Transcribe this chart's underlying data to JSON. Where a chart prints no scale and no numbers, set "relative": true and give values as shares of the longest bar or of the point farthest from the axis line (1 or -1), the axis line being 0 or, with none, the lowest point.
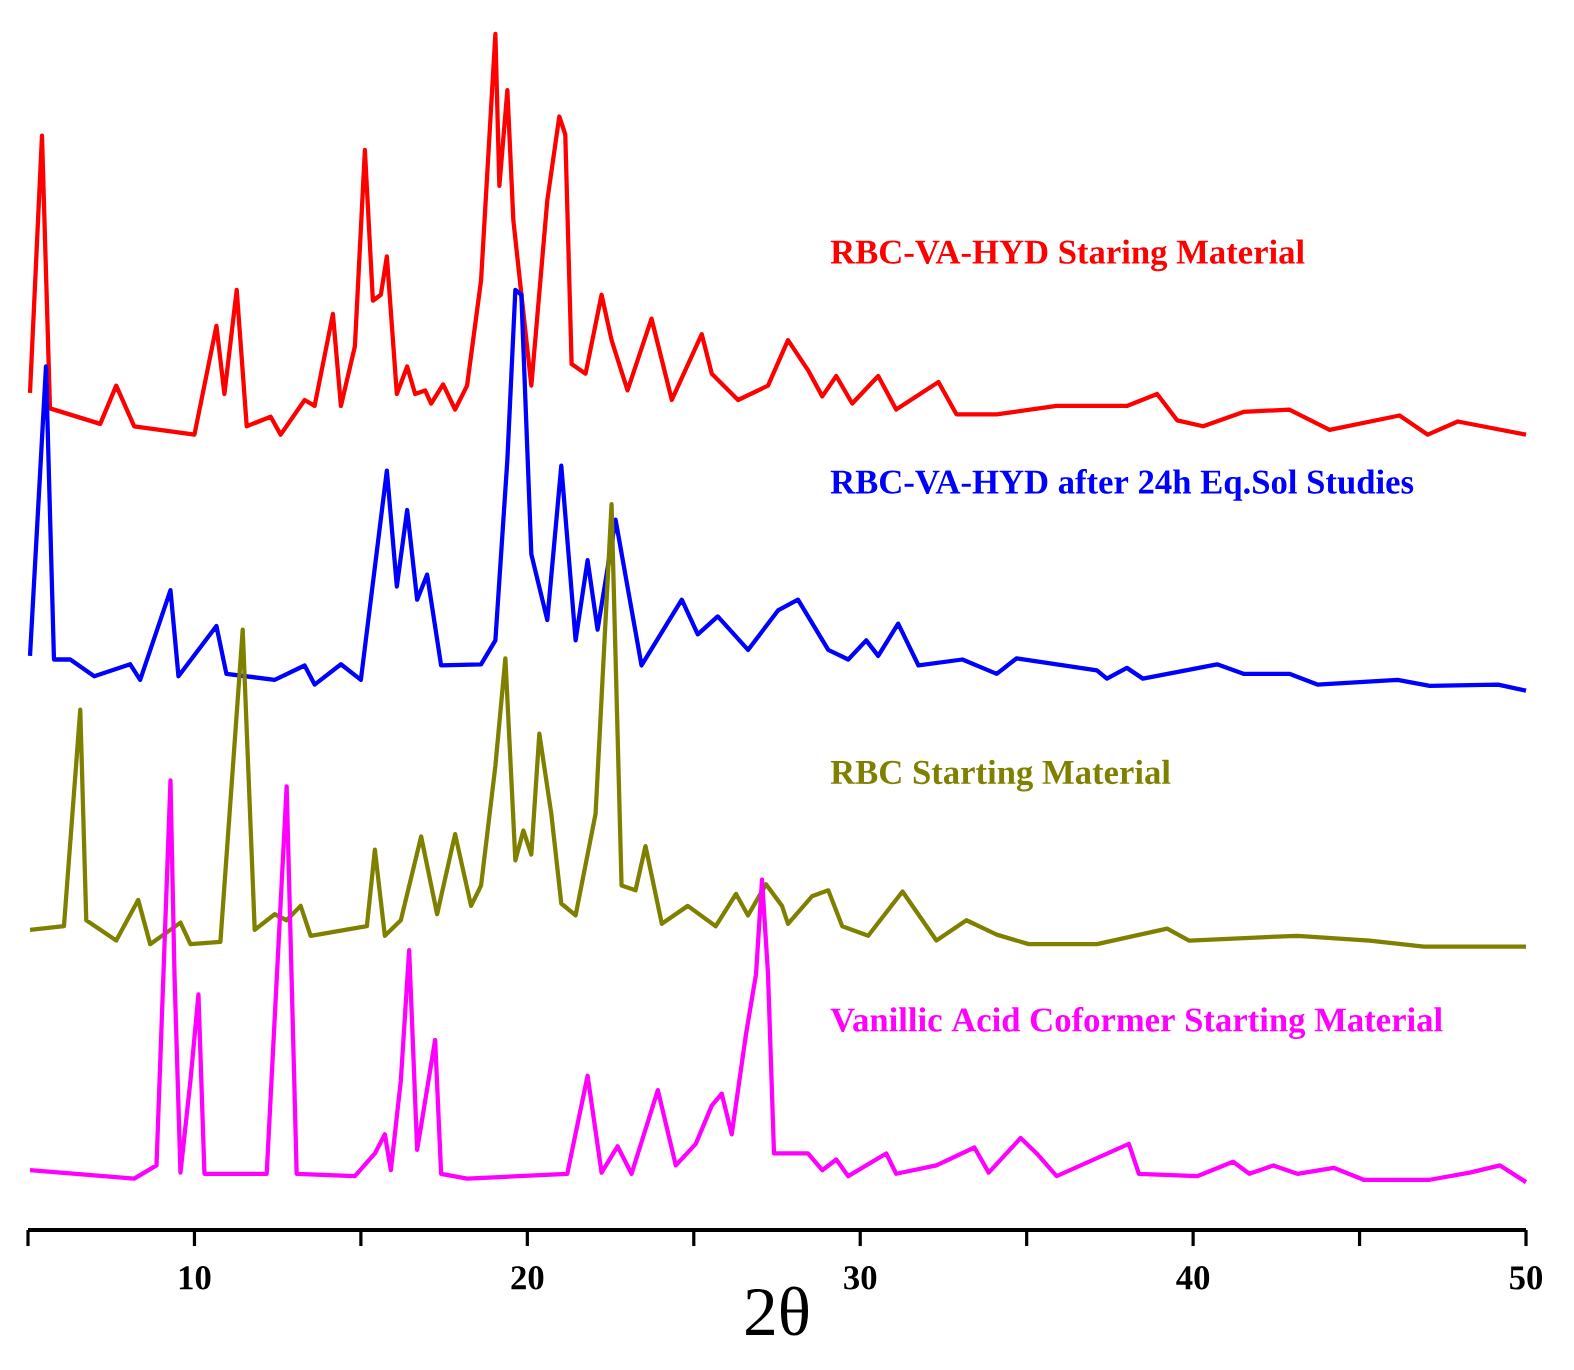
{
  "chart_data": {
    "type": "line",
    "xlabel": "2θ",
    "relative": true,
    "legend": false,
    "grid": false,
    "marker": "none",
    "line_style": "solid",
    "tick_labels": "x",
    "xlim": [
      5,
      50
    ],
    "xticks": [
      {
        "value": 5,
        "label": null
      },
      10,
      {
        "value": 15,
        "label": null
      },
      20,
      {
        "value": 25,
        "label": null
      },
      30,
      {
        "value": 35,
        "label": null
      },
      40,
      {
        "value": 45,
        "label": null
      },
      50
    ],
    "series": [
      {
        "name": "RBC-VA-HYD Staring Material",
        "color": "#ff0000",
        "x": [
          5.06,
          5.42,
          5.66,
          7.17,
          7.65,
          8.19,
          10.0,
          10.66,
          10.9,
          11.27,
          11.57,
          12.29,
          12.59,
          13.31,
          13.61,
          14.16,
          14.4,
          14.82,
          15.12,
          15.36,
          15.6,
          15.78,
          16.08,
          16.39,
          16.63,
          16.93,
          17.11,
          17.47,
          17.83,
          18.19,
          18.61,
          19.04,
          19.16,
          19.4,
          19.58,
          20.12,
          20.6,
          20.96,
          21.14,
          21.33,
          21.75,
          22.23,
          22.53,
          23.01,
          23.73,
          24.34,
          25.24,
          25.54,
          26.33,
          27.23,
          27.83,
          28.43,
          28.86,
          29.28,
          29.76,
          30.54,
          31.08,
          32.35,
          32.89,
          34.1,
          35.9,
          38.01,
          38.92,
          39.52,
          40.3,
          41.51,
          42.89,
          44.1,
          46.2,
          47.05,
          47.95,
          50.0
        ],
        "values": [
          0.7,
          0.915,
          0.687,
          0.674,
          0.706,
          0.672,
          0.665,
          0.756,
          0.699,
          0.786,
          0.672,
          0.68,
          0.665,
          0.694,
          0.689,
          0.766,
          0.689,
          0.739,
          0.903,
          0.777,
          0.782,
          0.814,
          0.699,
          0.722,
          0.699,
          0.702,
          0.691,
          0.707,
          0.686,
          0.706,
          0.794,
          1.0,
          0.873,
          0.953,
          0.844,
          0.706,
          0.861,
          0.931,
          0.916,
          0.724,
          0.716,
          0.782,
          0.744,
          0.702,
          0.762,
          0.694,
          0.749,
          0.716,
          0.694,
          0.706,
          0.744,
          0.719,
          0.697,
          0.714,
          0.691,
          0.714,
          0.686,
          0.709,
          0.682,
          0.682,
          0.689,
          0.689,
          0.699,
          0.677,
          0.672,
          0.684,
          0.686,
          0.669,
          0.681,
          0.665,
          0.676,
          0.665
        ]
      },
      {
        "name": "RBC-VA-HYD after 24h Eq.Sol Studies",
        "color": "#0000ff",
        "x": [
          5.06,
          5.54,
          5.78,
          6.27,
          6.99,
          8.07,
          8.37,
          9.28,
          9.52,
          10.66,
          10.96,
          12.41,
          13.31,
          13.61,
          14.4,
          15.0,
          15.78,
          16.08,
          16.39,
          16.69,
          16.99,
          17.41,
          18.61,
          19.04,
          19.4,
          19.64,
          19.82,
          20.12,
          20.6,
          21.02,
          21.45,
          21.81,
          22.11,
          22.65,
          23.43,
          24.64,
          25.12,
          25.72,
          26.63,
          27.53,
          28.13,
          29.04,
          29.64,
          30.18,
          30.54,
          31.14,
          31.75,
          33.07,
          34.1,
          34.7,
          37.11,
          37.41,
          38.01,
          38.49,
          40.72,
          41.51,
          42.89,
          43.73,
          46.14,
          47.11,
          49.16,
          50.0
        ],
        "values": [
          0.48,
          0.722,
          0.477,
          0.477,
          0.463,
          0.473,
          0.46,
          0.535,
          0.463,
          0.505,
          0.465,
          0.46,
          0.472,
          0.456,
          0.473,
          0.46,
          0.635,
          0.538,
          0.602,
          0.527,
          0.548,
          0.472,
          0.473,
          0.493,
          0.644,
          0.786,
          0.782,
          0.565,
          0.51,
          0.639,
          0.493,
          0.56,
          0.502,
          0.594,
          0.472,
          0.527,
          0.498,
          0.513,
          0.485,
          0.518,
          0.527,
          0.485,
          0.477,
          0.493,
          0.48,
          0.507,
          0.472,
          0.477,
          0.465,
          0.478,
          0.468,
          0.461,
          0.47,
          0.461,
          0.473,
          0.465,
          0.465,
          0.456,
          0.46,
          0.455,
          0.456,
          0.451
        ]
      },
      {
        "name": "RBC Starting Material",
        "color": "#808000",
        "x": [
          5.06,
          6.08,
          6.57,
          6.75,
          7.65,
          8.31,
          8.67,
          9.58,
          9.88,
          10.78,
          11.45,
          11.81,
          12.41,
          12.77,
          13.19,
          13.49,
          15.18,
          15.42,
          15.72,
          16.2,
          16.81,
          17.29,
          17.83,
          18.31,
          18.61,
          19.04,
          19.34,
          19.64,
          19.88,
          20.12,
          20.36,
          20.72,
          21.02,
          21.45,
          22.05,
          22.53,
          22.83,
          23.25,
          23.55,
          24.04,
          24.82,
          25.66,
          26.27,
          26.63,
          27.17,
          27.65,
          27.83,
          28.55,
          29.04,
          29.46,
          30.24,
          31.27,
          32.29,
          33.19,
          34.1,
          35.06,
          37.11,
          39.22,
          39.88,
          43.13,
          45.3,
          46.93,
          50.0
        ],
        "values": [
          0.251,
          0.254,
          0.435,
          0.259,
          0.242,
          0.276,
          0.239,
          0.257,
          0.239,
          0.241,
          0.502,
          0.251,
          0.264,
          0.259,
          0.271,
          0.246,
          0.254,
          0.318,
          0.246,
          0.259,
          0.329,
          0.264,
          0.331,
          0.271,
          0.288,
          0.388,
          0.478,
          0.309,
          0.334,
          0.314,
          0.415,
          0.348,
          0.273,
          0.263,
          0.348,
          0.607,
          0.288,
          0.284,
          0.321,
          0.256,
          0.271,
          0.254,
          0.281,
          0.263,
          0.289,
          0.271,
          0.256,
          0.279,
          0.284,
          0.254,
          0.246,
          0.283,
          0.242,
          0.259,
          0.247,
          0.239,
          0.239,
          0.252,
          0.242,
          0.246,
          0.242,
          0.237,
          0.237
        ]
      },
      {
        "name": "Vanillic Acid Coformer Starting Material",
        "color": "#ff00ff",
        "x": [
          5.06,
          8.19,
          8.86,
          9.28,
          9.4,
          9.58,
          9.88,
          10.12,
          10.3,
          12.17,
          12.77,
          13.07,
          14.82,
          15.42,
          15.72,
          15.9,
          16.2,
          16.45,
          16.69,
          17.23,
          17.41,
          18.19,
          21.2,
          21.81,
          22.23,
          22.71,
          23.13,
          23.92,
          24.46,
          25.06,
          25.54,
          25.84,
          26.14,
          26.57,
          26.87,
          27.05,
          27.23,
          27.41,
          28.43,
          28.86,
          29.28,
          29.64,
          30.78,
          31.08,
          32.29,
          33.43,
          33.86,
          34.82,
          35.3,
          35.9,
          38.07,
          38.37,
          40.12,
          41.2,
          41.69,
          42.41,
          43.13,
          44.22,
          45.12,
          47.11,
          48.31,
          49.22,
          50.0
        ],
        "values": [
          0.05,
          0.043,
          0.054,
          0.376,
          0.214,
          0.048,
          0.125,
          0.197,
          0.047,
          0.047,
          0.371,
          0.047,
          0.045,
          0.064,
          0.08,
          0.05,
          0.125,
          0.234,
          0.067,
          0.159,
          0.047,
          0.043,
          0.047,
          0.129,
          0.048,
          0.07,
          0.047,
          0.117,
          0.054,
          0.072,
          0.104,
          0.114,
          0.08,
          0.164,
          0.214,
          0.293,
          0.214,
          0.064,
          0.064,
          0.05,
          0.059,
          0.045,
          0.064,
          0.047,
          0.054,
          0.069,
          0.048,
          0.077,
          0.064,
          0.045,
          0.072,
          0.047,
          0.045,
          0.057,
          0.047,
          0.054,
          0.047,
          0.052,
          0.042,
          0.042,
          0.048,
          0.054,
          0.04
        ]
      }
    ]
  }
}
